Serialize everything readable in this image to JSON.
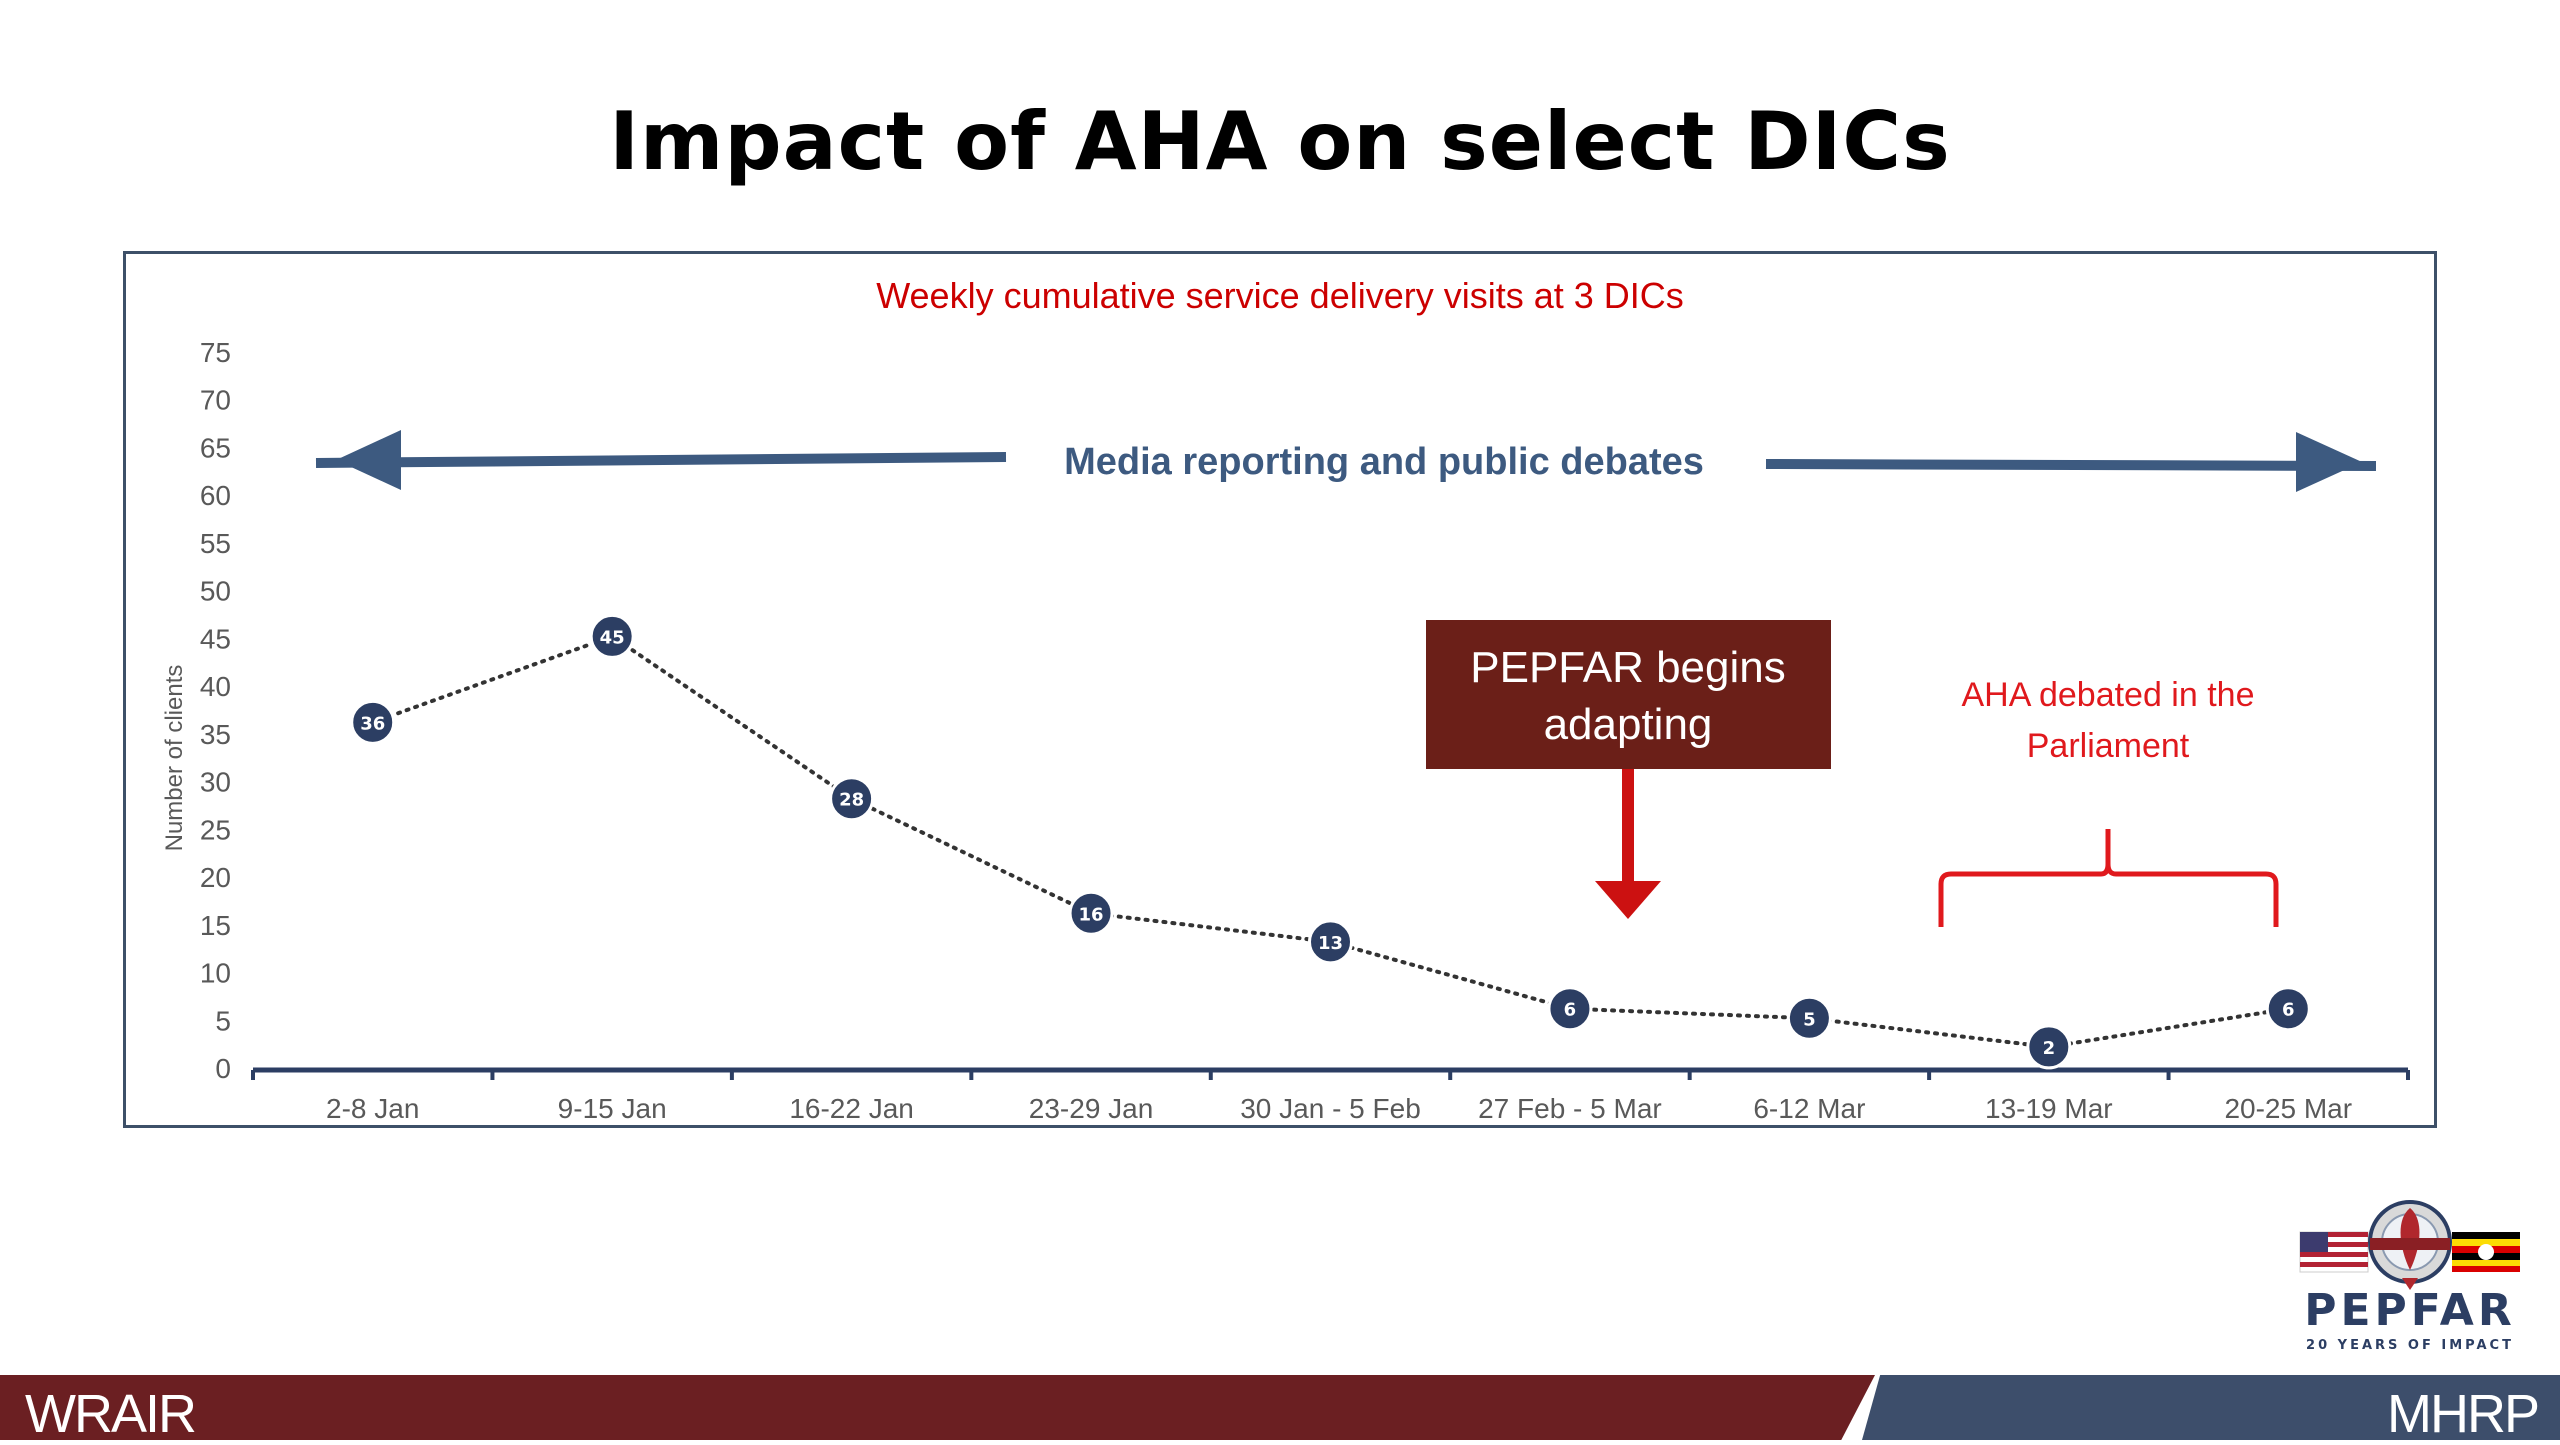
{
  "slide": {
    "title": "Impact of AHA on select DICs"
  },
  "chart_data": {
    "type": "line",
    "title": "Weekly cumulative service delivery visits at 3 DICs",
    "xlabel": "",
    "ylabel": "Number of clients",
    "ylim": [
      0,
      75
    ],
    "yticks": [
      0,
      5,
      10,
      15,
      20,
      25,
      30,
      35,
      40,
      45,
      50,
      55,
      60,
      65,
      70,
      75
    ],
    "categories": [
      "2-8 Jan",
      "9-15 Jan",
      "16-22 Jan",
      "23-29 Jan",
      "30 Jan - 5 Feb",
      "27 Feb - 5 Mar",
      "6-12 Mar",
      "13-19 Mar",
      "20-25 Mar"
    ],
    "series": [
      {
        "values": [
          36,
          45,
          28,
          16,
          13,
          6,
          5,
          2,
          6
        ]
      }
    ],
    "line_style": "dotted",
    "marker_color": "#2c3e63",
    "grid": false,
    "annotations": {
      "media_arrow_label": "Media reporting and public debates",
      "pepfar_box_label_line1": "PEPFAR begins",
      "pepfar_box_label_line2": "adapting",
      "parliament_label_line1": "AHA debated in the",
      "parliament_label_line2": "Parliament"
    }
  },
  "colors": {
    "title_red": "#cc0000",
    "navy": "#3d5a80",
    "marker": "#2c3e63",
    "pepfar_box": "#6b1f18",
    "arrow_red": "#cc1111",
    "brace_red": "#e0191d",
    "footer_left": "#6b1f22",
    "footer_right": "#3d4e6b"
  },
  "footer": {
    "left_text": "WRAIR",
    "right_text": "MHRP"
  },
  "logo": {
    "name": "pepfar-logo",
    "word": "PEPFAR",
    "subtitle": "20 YEARS OF IMPACT"
  }
}
